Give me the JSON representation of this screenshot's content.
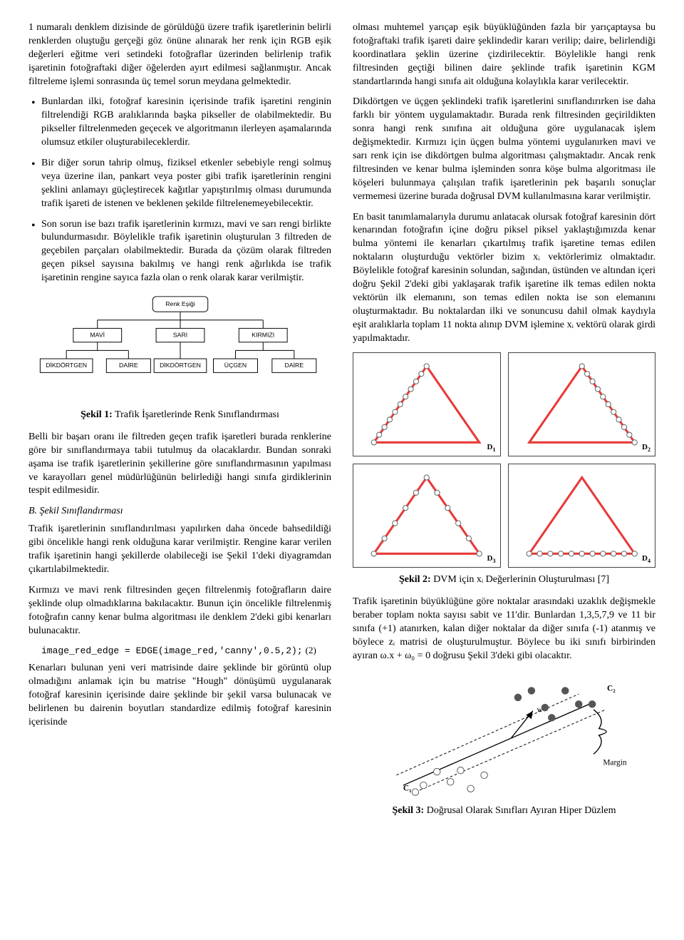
{
  "left": {
    "p1": "1 numaralı denklem dizisinde de görüldüğü üzere trafik işaretlerinin belirli renklerden oluştuğu gerçeği göz önüne alınarak her renk için RGB eşik değerleri eğitme veri setindeki fotoğraflar üzerinden belirlenip trafik işaretinin fotoğraftaki diğer öğelerden ayırt edilmesi sağlanmıştır. Ancak filtreleme işlemi sonrasında üç temel sorun meydana gelmektedir.",
    "b1": "Bunlardan ilki, fotoğraf karesinin içerisinde trafik işaretini renginin filtrelendiği RGB aralıklarında başka pikseller de olabilmektedir. Bu pikseller filtrelenmeden geçecek ve algoritmanın ilerleyen aşamalarında olumsuz etkiler oluşturabileceklerdir.",
    "b2": "Bir diğer sorun tahrip olmuş, fiziksel etkenler sebebiyle rengi solmuş veya üzerine ilan, pankart veya poster gibi trafik işaretlerinin rengini şeklini anlamayı güçleştirecek kağıtlar yapıştırılmış olması durumunda trafik işareti de istenen ve beklenen şekilde filtrelenemeyebilecektir.",
    "b3": "Son sorun ise bazı trafik işaretlerinin kırmızı, mavi ve sarı rengi birlikte bulundurmasıdır. Böylelikle trafik işaretinin oluşturulan 3 filtreden de geçebilen parçaları olabilmektedir. Burada da çözüm olarak filtreden geçen piksel sayısına bakılmış ve hangi renk ağırlıkda ise trafik işaretinin rengine sayıca fazla olan o renk olarak karar verilmiştir.",
    "fig1_caption_bold": "Şekil 1:",
    "fig1_caption": " Trafik İşaretlerinde Renk Sınıflandırması",
    "p2": "Belli bir başarı oranı ile filtreden geçen trafik işaretleri burada renklerine göre bir sınıflandırmaya tabii tutulmuş da olacaklardır. Bundan sonraki aşama ise trafik işaretlerinin şekillerine göre sınıflandırmasının yapılması ve karayolları genel müdürlüğünün belirlediği hangi sınıfa girdiklerinin tespit edilmesidir.",
    "sectionB": "B.  Şekil Sınıflandırması",
    "p3": "Trafik işaretlerinin sınıflandırılması yapılırken daha öncede bahsedildiği gibi öncelikle hangi renk olduğuna karar verilmiştir. Rengine karar verilen trafik işaretinin hangi şekillerde olabileceği ise Şekil 1'deki diyagramdan çıkartılabilmektedir.",
    "p4": "Kırmızı ve mavi renk filtresinden geçen filtrelenmiş fotoğrafların daire şeklinde olup olmadıklarına bakılacaktır. Bunun için öncelikle filtrelenmiş fotoğrafın canny kenar bulma algoritması ile denklem 2'deki gibi kenarları bulunacaktır.",
    "code": "image_red_edge = EDGE(image_red,'canny',0.5,2);",
    "eqnum": "(2)",
    "p5": "Kenarları bulunan yeni veri matrisinde daire şeklinde bir görüntü olup olmadığını anlamak için bu matrise \"Hough\" dönüşümü uygulanarak fotoğraf karesinin içerisinde daire şeklinde bir şekil varsa bulunacak ve belirlenen bu dairenin boyutları standardize edilmiş fotoğraf karesinin içerisinde"
  },
  "right": {
    "p1": "olması muhtemel yarıçap eşik büyüklüğünden fazla bir yarıçaptaysa bu fotoğraftaki trafik işareti daire şeklindedir kararı verilip; daire, belirlendiği koordinatlara şeklin üzerine çizdirilecektir. Böylelikle hangi renk filtresinden geçtiği bilinen daire şeklinde trafik işaretinin KGM standartlarında hangi sınıfa ait olduğuna kolaylıkla karar verilecektir.",
    "p2": "Dikdörtgen ve üçgen şeklindeki trafik işaretlerini sınıflandırırken ise daha farklı bir yöntem uygulamaktadır. Burada renk filtresinden geçirildikten sonra hangi renk sınıfına ait olduğuna göre uygulanacak işlem değişmektedir. Kırmızı için üçgen bulma yöntemi uygulanırken mavi ve sarı renk için ise dikdörtgen bulma algoritması çalışmaktadır. Ancak renk filtresinden ve kenar bulma işleminden sonra köşe bulma algoritması ile köşeleri bulunmaya çalışılan trafik işaretlerinin pek başarılı sonuçlar vermemesi üzerine burada doğrusal DVM kullanılmasına karar verilmiştir.",
    "p3": "En basit tanımlamalarıyla durumu anlatacak olursak fotoğraf karesinin dört kenarından fotoğrafın içine doğru piksel piksel yaklaştığımızda kenar bulma yöntemi ile kenarları çıkartılmış trafik işaretine temas edilen noktaların oluşturduğu vektörler bizim xᵢ vektörlerimiz olmaktadır. Böylelikle fotoğraf karesinin solundan, sağından, üstünden ve altından içeri doğru Şekil 2'deki gibi yaklaşarak trafik işaretine ilk temas edilen nokta vektörün ilk elemanını, son temas edilen nokta ise son elemanını oluşturmaktadır. Bu noktalardan ilki ve sonuncusu dahil olmak kaydıyla eşit aralıklarla toplam 11 nokta alınıp DVM işlemine xᵢ vektörü olarak girdi yapılmaktadır.",
    "fig2_caption_bold": "Şekil 2:",
    "fig2_caption": " DVM için xᵢ Değerlerinin Oluşturulması [7]",
    "p4": "Trafik işaretinin büyüklüğüne göre noktalar arasındaki uzaklık değişmekle beraber toplam nokta sayısı sabit ve 11'dir. Bunlardan 1,3,5,7,9 ve 11 bir sınıfa (+1) atanırken, kalan diğer noktalar da diğer sınıfa (-1) atanmış ve böylece zᵢ matrisi de oluşturulmuştur. Böylece bu iki sınıfı birbirinden ayıran ω.x + ω₀ = 0 doğrusu Şekil 3'deki gibi olacaktır.",
    "fig3_caption_bold": "Şekil 3:",
    "fig3_caption": " Doğrusal Olarak Sınıfları Ayıran Hiper Düzlem"
  },
  "tree": {
    "root": "Renk Eşiği",
    "mid": [
      "MAVİ",
      "SARI",
      "KIRMIZI"
    ],
    "leaves": [
      "DİKDÖRTGEN",
      "DAİRE",
      "DİKDÖRTGEN",
      "ÜÇGEN",
      "DAİRE"
    ]
  },
  "triangles": {
    "labels": [
      "D₁",
      "D₂",
      "D₃",
      "D₄"
    ],
    "triangle_color": "#e83a3a",
    "triangle_width": 3,
    "dot_fill": "#ffffff",
    "dot_stroke": "#666666",
    "grid_color": "#888888"
  },
  "hyperplane": {
    "label_c1": "C₁",
    "label_c2": "C₂",
    "label_w": "w",
    "label_margin": "Margin"
  }
}
